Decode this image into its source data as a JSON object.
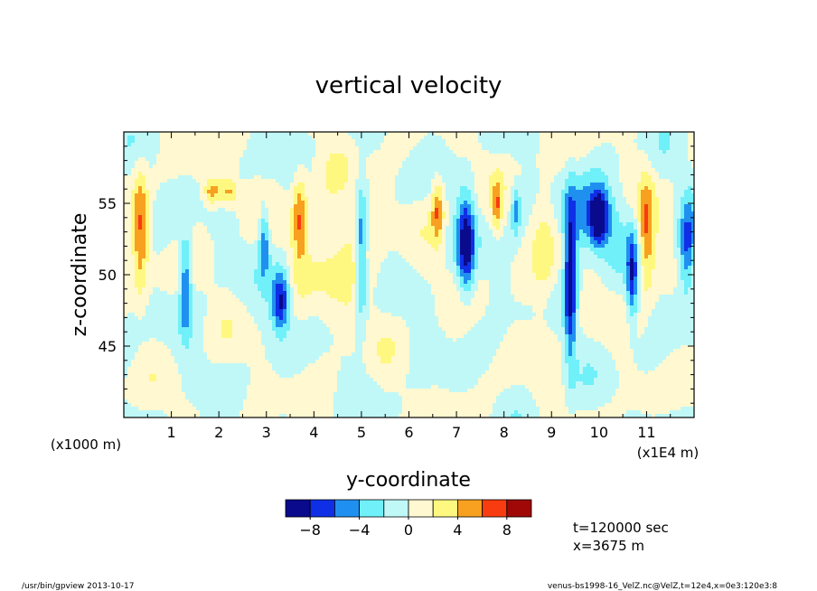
{
  "chart_data": {
    "type": "heatmap",
    "title": "vertical velocity",
    "xlabel": "y-coordinate",
    "ylabel": "z-coordinate",
    "x_units_label": "(x1E4 m)",
    "y_units_label": "(x1000 m)",
    "xlim": [
      0,
      12
    ],
    "ylim": [
      40,
      60
    ],
    "x_ticks": [
      "1",
      "2",
      "3",
      "4",
      "5",
      "6",
      "7",
      "8",
      "9",
      "10",
      "11"
    ],
    "y_ticks": [
      "45",
      "50",
      "55"
    ],
    "colorbar": {
      "levels": [
        -10,
        -8,
        -6,
        -4,
        -2,
        0,
        2,
        4,
        6,
        8,
        10
      ],
      "tick_labels": [
        "-8",
        "-4",
        "0",
        "4",
        "8"
      ],
      "colors": [
        "#0a0a8c",
        "#0f2fe6",
        "#2090f0",
        "#70f0f8",
        "#c0f8f8",
        "#fff8d0",
        "#fff880",
        "#f8a020",
        "#f83c10",
        "#a00808"
      ]
    },
    "features": [
      {
        "y": 0.35,
        "z": 53.2,
        "w": 0.11,
        "h": 3.2,
        "v": 5.5
      },
      {
        "y": 1.3,
        "z": 49.5,
        "w": 0.08,
        "h": 2.4,
        "v": -6.5
      },
      {
        "y": 1.85,
        "z": 55.8,
        "w": 0.12,
        "h": 0.7,
        "v": 5.0
      },
      {
        "y": 2.2,
        "z": 55.8,
        "w": 0.15,
        "h": 0.7,
        "v": 5.0
      },
      {
        "y": 2.95,
        "z": 52.5,
        "w": 0.08,
        "h": 1.8,
        "v": -6.0
      },
      {
        "y": 3.3,
        "z": 48.2,
        "w": 0.14,
        "h": 1.5,
        "v": -9.0
      },
      {
        "y": 3.7,
        "z": 54.0,
        "w": 0.11,
        "h": 2.2,
        "v": 6.0
      },
      {
        "y": 4.55,
        "z": 51.5,
        "w": 0.55,
        "h": 3.5,
        "v": 2.6
      },
      {
        "y": 5.0,
        "z": 51.5,
        "w": 0.09,
        "h": 3.4,
        "v": -6.5
      },
      {
        "y": 6.6,
        "z": 54.5,
        "w": 0.09,
        "h": 1.6,
        "v": 5.5
      },
      {
        "y": 7.2,
        "z": 52.0,
        "w": 0.13,
        "h": 2.4,
        "v": -9.0
      },
      {
        "y": 7.85,
        "z": 54.8,
        "w": 0.07,
        "h": 1.2,
        "v": 5.0
      },
      {
        "y": 8.25,
        "z": 54.5,
        "w": 0.07,
        "h": 1.2,
        "v": -5.0
      },
      {
        "y": 8.85,
        "z": 51.5,
        "w": 0.2,
        "h": 4.2,
        "v": 2.6
      },
      {
        "y": 9.4,
        "z": 49.5,
        "w": 0.09,
        "h": 3.8,
        "v": -9.5
      },
      {
        "y": 9.85,
        "z": 54.0,
        "w": 0.45,
        "h": 1.9,
        "v": -5.0
      },
      {
        "y": 10.0,
        "z": 54.0,
        "w": 0.12,
        "h": 1.2,
        "v": -9.0
      },
      {
        "y": 10.7,
        "z": 49.8,
        "w": 0.08,
        "h": 2.2,
        "v": -7.0
      },
      {
        "y": 11.0,
        "z": 53.0,
        "w": 0.12,
        "h": 2.8,
        "v": 6.0
      },
      {
        "y": 11.85,
        "z": 52.0,
        "w": 0.12,
        "h": 2.4,
        "v": -6.5
      }
    ]
  },
  "annotations": {
    "time": "t=120000 sec",
    "position": "x=3675 m",
    "footer_left": "/usr/bin/gpview  2013-10-17",
    "footer_right": "venus-bs1998-16_VelZ.nc@VelZ,t=12e4,x=0e3:120e3:8"
  }
}
